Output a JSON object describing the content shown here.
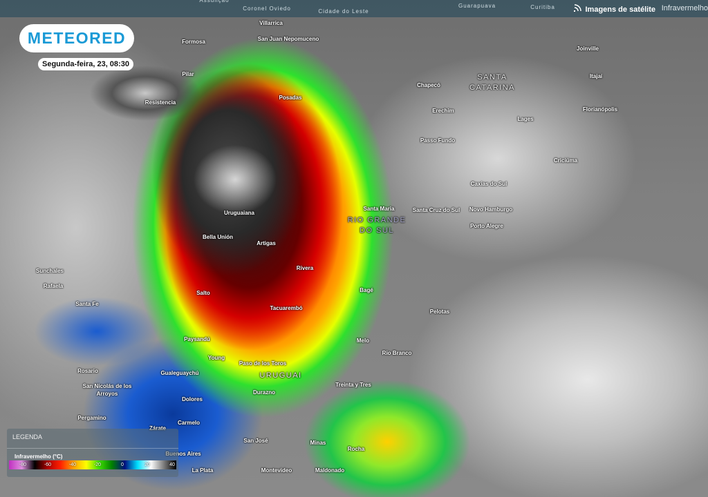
{
  "header": {
    "top_labels": [
      "Assunção",
      "Coronel Oviedo",
      "Cidade do Leste",
      "Guarapuava",
      "Curitiba"
    ],
    "product_label": "Imagens de satélite",
    "channel_label": "Infravermelho",
    "satellite_icon": "satellite-dish-icon"
  },
  "brand": {
    "logo_text": "METEORED",
    "color": "#1a9ad6"
  },
  "timestamp": "Segunda-feira, 23, 08:30",
  "regions": {
    "santa_catarina": [
      "SANTA",
      "CATARINA"
    ],
    "rio_grande_do_sul": [
      "RIO GRANDE",
      "DO SUL"
    ],
    "uruguai": "URUGUAI"
  },
  "cities": [
    "Villarrica",
    "San Juan Nepomuceno",
    "Formosa",
    "Joinville",
    "Pilar",
    "Itajaí",
    "Chapecó",
    "Posadas",
    "Resistencia",
    "Erechim",
    "Florianópolis",
    "Lages",
    "Passo Fundo",
    "Criciúma",
    "Caxias do Sul",
    "Santa Maria",
    "Santa Cruz do Sul",
    "Novo Hamburgo",
    "Uruguaiana",
    "Porto Alegre",
    "Bella Unión",
    "Artigas",
    "Rivera",
    "Sunchales",
    "Rafaela",
    "Salto",
    "Bagé",
    "Santa Fe",
    "Tacuarembó",
    "Pelotas",
    "Paysandú",
    "Melo",
    "Rio Branco",
    "Young",
    "Paso de los Toros",
    "Rosario",
    "Gualeguaychú",
    "San Nicolás de los",
    "Arroyos",
    "Treinta y Tres",
    "Durazno",
    "Dolores",
    "Pergamino",
    "Carmelo",
    "Zárate",
    "San José",
    "Minas",
    "Buenos Aires",
    "Rocha",
    "La Plata",
    "Montevideo",
    "Maldonado"
  ],
  "legend": {
    "title": "LEGENDA",
    "subtitle": "Infravermelho (°C)",
    "ticks": [
      "-80",
      "-60",
      "-40",
      "-20",
      "0",
      "20",
      "40"
    ],
    "colors": [
      "#c030c0",
      "#e090e0",
      "#000000",
      "#b00000",
      "#ff2000",
      "#ffa000",
      "#ffff00",
      "#40e000",
      "#008000",
      "#001080",
      "#00e0ff",
      "#ffffff",
      "#808080",
      "#000000"
    ]
  }
}
